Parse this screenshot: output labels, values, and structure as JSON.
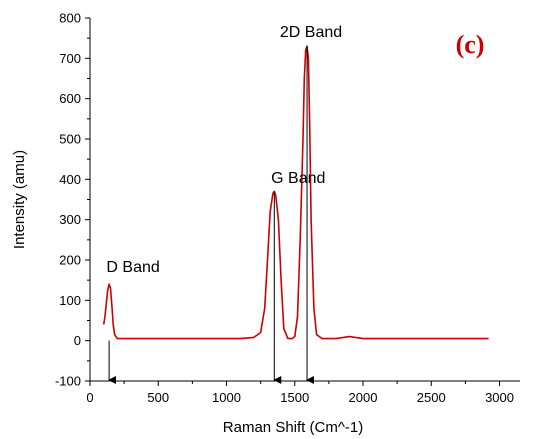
{
  "chart_data": {
    "type": "line",
    "panel_label": "(c)",
    "title": "",
    "xlabel": "Raman Shift (Cm^-1)",
    "ylabel": "Intensity (amu)",
    "xlim": [
      0,
      3150
    ],
    "ylim": [
      -100,
      800
    ],
    "x_ticks": [
      0,
      500,
      1000,
      1500,
      2000,
      2500,
      3000
    ],
    "y_ticks": [
      -100,
      0,
      100,
      200,
      300,
      400,
      500,
      600,
      700,
      800
    ],
    "x_tick_labels": [
      "0",
      "500",
      "1000",
      "1500",
      "2000",
      "2500",
      "3000"
    ],
    "y_tick_labels": [
      "-100",
      "0",
      "100",
      "200",
      "300",
      "400",
      "500",
      "600",
      "700",
      "800"
    ],
    "grid": false,
    "line_color": "#cc0000",
    "series": [
      {
        "x": [
          100,
          110,
          120,
          130,
          140,
          150,
          160,
          170,
          180,
          200,
          300,
          500,
          800,
          1000,
          1100,
          1200,
          1250,
          1280,
          1300,
          1320,
          1340,
          1350,
          1360,
          1380,
          1400,
          1420,
          1450,
          1480,
          1500,
          1520,
          1540,
          1560,
          1570,
          1580,
          1590,
          1600,
          1610,
          1620,
          1640,
          1660,
          1700,
          1800,
          1900,
          2000,
          2300,
          2500,
          2700,
          2920
        ],
        "y": [
          40,
          60,
          95,
          125,
          140,
          130,
          90,
          40,
          15,
          5,
          5,
          5,
          5,
          5,
          5,
          8,
          20,
          80,
          200,
          320,
          365,
          370,
          360,
          300,
          150,
          30,
          5,
          5,
          10,
          60,
          250,
          500,
          650,
          720,
          730,
          700,
          520,
          300,
          80,
          15,
          5,
          5,
          10,
          5,
          5,
          5,
          5,
          5
        ]
      }
    ],
    "annotations": [
      {
        "text": "D Band",
        "x": 140
      },
      {
        "text": "G Band",
        "x": 1350
      },
      {
        "text": "2D Band",
        "x": 1590
      }
    ],
    "arrows": [
      {
        "x": 140,
        "y_from": 0,
        "y_to": -100
      },
      {
        "x": 1350,
        "y_from": 370,
        "y_to": -100
      },
      {
        "x": 1590,
        "y_from": 730,
        "y_to": -100
      }
    ]
  }
}
